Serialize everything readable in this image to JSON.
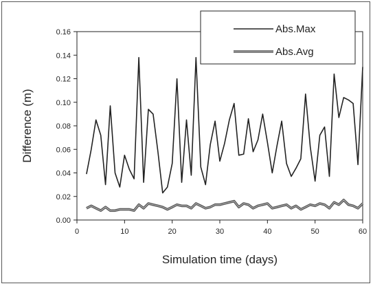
{
  "chart_data": {
    "type": "line",
    "title": "",
    "xlabel": "Simulation time (days)",
    "ylabel": "Difference (m)",
    "xlim": [
      0,
      60
    ],
    "ylim": [
      0,
      0.16
    ],
    "x_ticks": [
      0,
      10,
      20,
      30,
      40,
      50,
      60
    ],
    "y_ticks": [
      "0.00",
      "0.02",
      "0.04",
      "0.06",
      "0.08",
      "0.10",
      "0.12",
      "0.14",
      "0.16"
    ],
    "grid": false,
    "legend_position": "top-right",
    "x": [
      2,
      3,
      4,
      5,
      6,
      7,
      8,
      9,
      10,
      11,
      12,
      13,
      14,
      15,
      16,
      17,
      18,
      19,
      20,
      21,
      22,
      23,
      24,
      25,
      26,
      27,
      28,
      29,
      30,
      31,
      32,
      33,
      34,
      35,
      36,
      37,
      38,
      39,
      40,
      41,
      42,
      43,
      44,
      45,
      46,
      47,
      48,
      49,
      50,
      51,
      52,
      53,
      54,
      55,
      56,
      57,
      58,
      59,
      60
    ],
    "series": [
      {
        "name": "Abs.Max",
        "style": "thin",
        "color": "#222222",
        "values": [
          0.039,
          0.06,
          0.085,
          0.072,
          0.03,
          0.097,
          0.04,
          0.028,
          0.055,
          0.043,
          0.035,
          0.138,
          0.032,
          0.094,
          0.09,
          0.058,
          0.023,
          0.028,
          0.048,
          0.12,
          0.032,
          0.085,
          0.038,
          0.138,
          0.045,
          0.03,
          0.064,
          0.084,
          0.05,
          0.065,
          0.085,
          0.099,
          0.055,
          0.056,
          0.086,
          0.058,
          0.068,
          0.09,
          0.066,
          0.04,
          0.063,
          0.084,
          0.048,
          0.037,
          0.044,
          0.052,
          0.107,
          0.062,
          0.033,
          0.072,
          0.079,
          0.037,
          0.124,
          0.087,
          0.104,
          0.102,
          0.099,
          0.047,
          0.13
        ]
      },
      {
        "name": "Abs.Avg",
        "style": "thick",
        "color": "#666666",
        "values": [
          0.01,
          0.012,
          0.01,
          0.008,
          0.011,
          0.008,
          0.008,
          0.009,
          0.009,
          0.009,
          0.008,
          0.013,
          0.01,
          0.014,
          0.013,
          0.012,
          0.011,
          0.009,
          0.011,
          0.013,
          0.012,
          0.012,
          0.01,
          0.014,
          0.012,
          0.01,
          0.011,
          0.013,
          0.013,
          0.014,
          0.015,
          0.016,
          0.011,
          0.014,
          0.013,
          0.01,
          0.012,
          0.013,
          0.014,
          0.01,
          0.011,
          0.012,
          0.013,
          0.01,
          0.012,
          0.009,
          0.011,
          0.013,
          0.012,
          0.014,
          0.013,
          0.01,
          0.015,
          0.013,
          0.017,
          0.013,
          0.012,
          0.01,
          0.014
        ]
      }
    ]
  },
  "legend": {
    "max_label": "Abs.Max",
    "avg_label": "Abs.Avg"
  }
}
